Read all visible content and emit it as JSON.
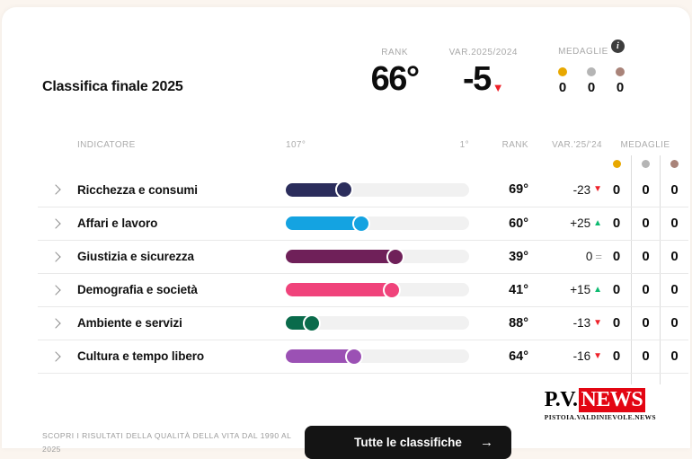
{
  "medal_colors": {
    "gold": "#E8A800",
    "silver": "#B5B5B5",
    "bronze": "#A98379"
  },
  "header": {
    "title": "Classifica finale 2025",
    "rank": {
      "label": "RANK",
      "value": "66°"
    },
    "variation": {
      "label": "VAR.2025/2024",
      "value": "-5",
      "icon": "▼",
      "icon_color": "#EE2129"
    },
    "medals": {
      "label": "MEDAGLIE",
      "info_icon": "i",
      "counts": [
        "0",
        "0",
        "0"
      ]
    }
  },
  "table": {
    "header": {
      "indicator": "INDICATORE",
      "scale_start": "107°",
      "scale_end": "1°",
      "rank": "RANK",
      "variation": "VAR.'25/'24",
      "medals": "MEDAGLIE"
    },
    "rows": [
      {
        "label": "Ricchezza e consumi",
        "bar_color": "#2B2D5C",
        "fill_percent": 34,
        "rank": "69°",
        "variation": "-23",
        "icon": "▼",
        "icon_color": "#EE2129",
        "medals": [
          "0",
          "0",
          "0"
        ]
      },
      {
        "label": "Affari e lavoro",
        "bar_color": "#14A3E1",
        "fill_percent": 43,
        "rank": "60°",
        "variation": "+25",
        "icon": "▲",
        "icon_color": "#0CBA70",
        "medals": [
          "0",
          "0",
          "0"
        ]
      },
      {
        "label": "Giustizia e sicurezza",
        "bar_color": "#6F2059",
        "fill_percent": 62,
        "rank": "39°",
        "variation": "0",
        "icon": "=",
        "icon_color": "#B0B0B0",
        "medals": [
          "0",
          "0",
          "0"
        ]
      },
      {
        "label": "Demografia e società",
        "bar_color": "#F0437B",
        "fill_percent": 60,
        "rank": "41°",
        "variation": "+15",
        "icon": "▲",
        "icon_color": "#0CBA70",
        "medals": [
          "0",
          "0",
          "0"
        ]
      },
      {
        "label": "Ambiente e servizi",
        "bar_color": "#0A6B4B",
        "fill_percent": 16,
        "rank": "88°",
        "variation": "-13",
        "icon": "▼",
        "icon_color": "#EE2129",
        "medals": [
          "0",
          "0",
          "0"
        ]
      },
      {
        "label": "Cultura e tempo libero",
        "bar_color": "#9B51B4",
        "fill_percent": 39,
        "rank": "64°",
        "variation": "-16",
        "icon": "▼",
        "icon_color": "#EE2129",
        "medals": [
          "0",
          "0",
          "0"
        ]
      }
    ]
  },
  "footer": {
    "logo": {
      "prefix": "P.V.",
      "highlight": "NEWS",
      "highlight_bg": "#E30613",
      "subtitle": "PISTOIA.VALDINIEVOLE.NEWS"
    },
    "note": "SCOPRI I RISULTATI DELLA QUALITÀ DELLA VITA DAL 1990 AL 2025",
    "button": {
      "label": "Tutte le classifiche",
      "icon": "→"
    }
  }
}
